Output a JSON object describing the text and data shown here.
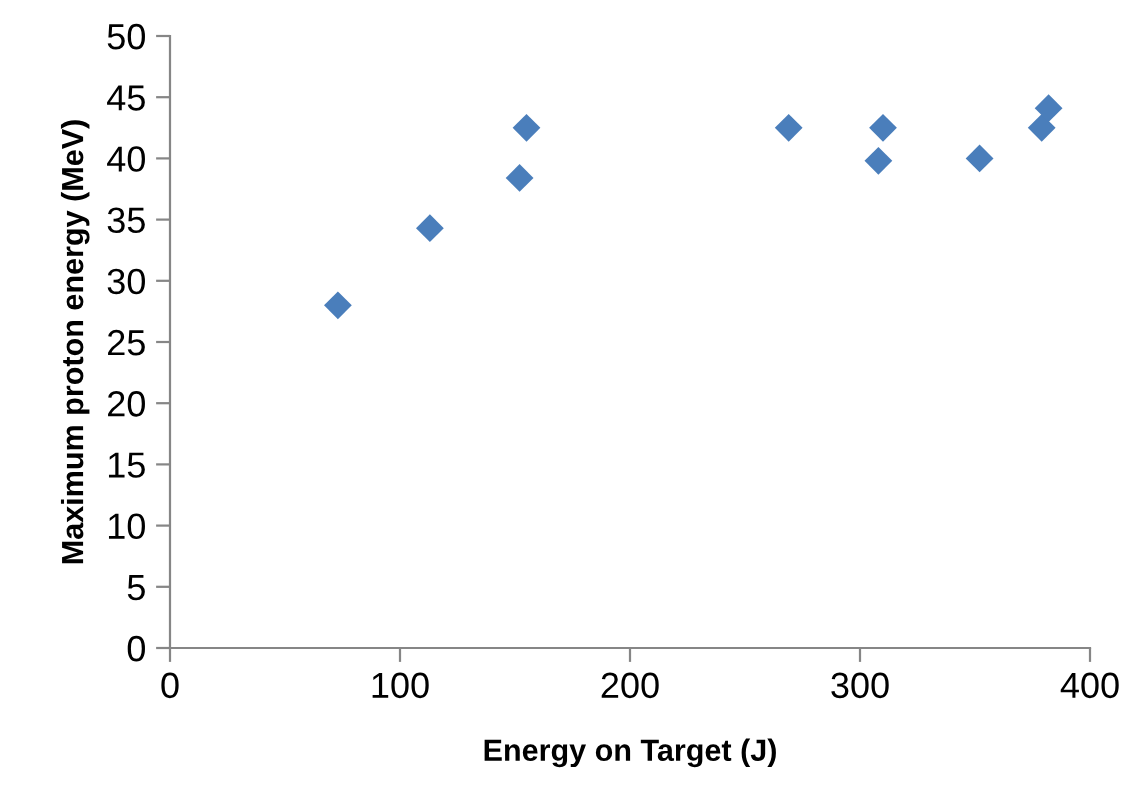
{
  "chart_data": {
    "type": "scatter",
    "xlabel": "Energy on Target (J)",
    "ylabel": "Maximum proton energy (MeV)",
    "x": [
      73,
      113,
      152,
      155,
      269,
      310,
      308,
      352,
      379,
      382
    ],
    "values": [
      28,
      34.3,
      38.4,
      42.5,
      42.5,
      42.5,
      39.8,
      40,
      42.5,
      44.1
    ],
    "color": "#4a7ebb",
    "marker": "diamond",
    "xlim": [
      0,
      400
    ],
    "xticks": [
      0,
      100,
      200,
      300,
      400
    ],
    "ylim": [
      0,
      50
    ],
    "yticks": [
      0,
      5,
      10,
      15,
      20,
      25,
      30,
      35,
      40,
      45,
      50
    ],
    "grid": false,
    "legend": false
  }
}
